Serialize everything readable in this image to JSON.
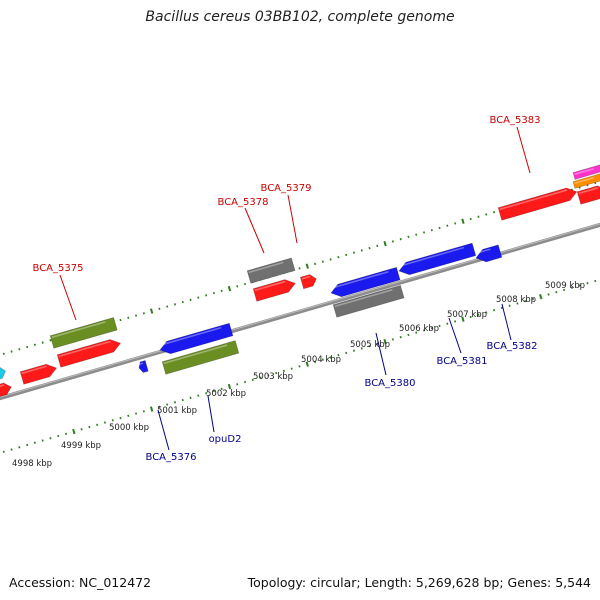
{
  "title": "Bacillus cereus 03BB102, complete genome",
  "footer": {
    "accession": "Accession: NC_012472",
    "summary": "Topology: circular; Length: 5,269,628 bp; Genes: 5,544"
  },
  "colors": {
    "backbone": "#8c8c8c",
    "tick": "#2e7d1f",
    "label_red": "#cc0000",
    "label_blue": "#00008b",
    "red": "#ff1a1a",
    "blue": "#1a1aee",
    "olive": "#6b8e23",
    "gray": "#707070",
    "cyan": "#1ec8e6",
    "magenta": "#ff33cc",
    "orange": "#ff8c00"
  },
  "kbp_labels": [
    "4998 kbp",
    "4999 kbp",
    "5000 kbp",
    "5001 kbp",
    "5002 kbp",
    "5003 kbp",
    "5004 kbp",
    "5005 kbp",
    "5006 kbp",
    "5007 kbp",
    "5008 kbp",
    "5009 kbp"
  ],
  "gene_labels": {
    "top": [
      "BCA_5375",
      "BCA_5378",
      "BCA_5379",
      "BCA_5383"
    ],
    "bottom": [
      "BCA_5376",
      "opuD2",
      "BCA_5380",
      "BCA_5381",
      "BCA_5382"
    ]
  }
}
